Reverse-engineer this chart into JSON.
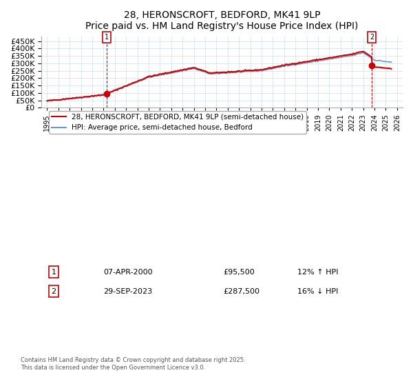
{
  "title": "28, HERONSCROFT, BEDFORD, MK41 9LP",
  "subtitle": "Price paid vs. HM Land Registry's House Price Index (HPI)",
  "legend_line1": "28, HERONSCROFT, BEDFORD, MK41 9LP (semi-detached house)",
  "legend_line2": "HPI: Average price, semi-detached house, Bedford",
  "annotation1_label": "1",
  "annotation1_date": "07-APR-2000",
  "annotation1_price": "£95,500",
  "annotation1_hpi": "12% ↑ HPI",
  "annotation2_label": "2",
  "annotation2_date": "29-SEP-2023",
  "annotation2_price": "£287,500",
  "annotation2_hpi": "16% ↓ HPI",
  "footer": "Contains HM Land Registry data © Crown copyright and database right 2025.\nThis data is licensed under the Open Government Licence v3.0.",
  "red_color": "#cc0000",
  "blue_color": "#6699cc",
  "marker1_x": 2000.27,
  "marker1_y": 95500,
  "marker2_x": 2023.75,
  "marker2_y": 287500,
  "ylim": [
    0,
    480000
  ],
  "xlim": [
    1994.5,
    2026.5
  ],
  "yticks": [
    0,
    50000,
    100000,
    150000,
    200000,
    250000,
    300000,
    350000,
    400000,
    450000
  ],
  "xticks": [
    1995,
    1996,
    1997,
    1998,
    1999,
    2000,
    2001,
    2002,
    2003,
    2004,
    2005,
    2006,
    2007,
    2008,
    2009,
    2010,
    2011,
    2012,
    2013,
    2014,
    2015,
    2016,
    2017,
    2018,
    2019,
    2020,
    2021,
    2022,
    2023,
    2024,
    2025,
    2026
  ]
}
